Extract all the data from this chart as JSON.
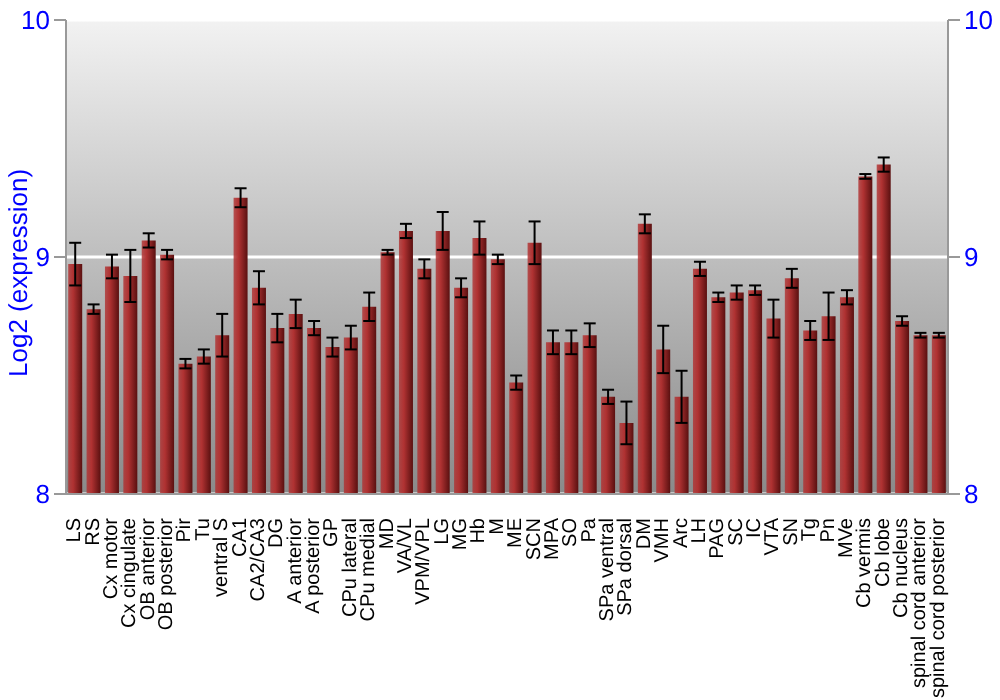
{
  "chart_data": {
    "type": "bar",
    "ylabel": "Log2 (expression)",
    "categories": [
      "LS",
      "RS",
      "Cx motor",
      "Cx cingulate",
      "OB anterior",
      "OB posterior",
      "Pir",
      "Tu",
      "ventral S",
      "CA1",
      "CA2/CA3",
      "DG",
      "A anterior",
      "A posterior",
      "GP",
      "CPu lateral",
      "CPu medial",
      "MD",
      "VA/VL",
      "VPM/VPL",
      "LG",
      "MG",
      "Hb",
      "M",
      "ME",
      "SCN",
      "MPA",
      "SO",
      "Pa",
      "SPa ventral",
      "SPa dorsal",
      "DM",
      "VMH",
      "Arc",
      "LH",
      "PAG",
      "SC",
      "IC",
      "VTA",
      "SN",
      "Tg",
      "Pn",
      "MVe",
      "Cb vermis",
      "Cb lobe",
      "Cb nucleus",
      "spinal cord anterior",
      "spinal cord posterior"
    ],
    "values": [
      8.97,
      8.78,
      8.96,
      8.92,
      9.07,
      9.01,
      8.55,
      8.58,
      8.67,
      9.25,
      8.87,
      8.7,
      8.76,
      8.7,
      8.62,
      8.66,
      8.79,
      9.02,
      9.11,
      8.95,
      9.11,
      8.87,
      9.08,
      8.99,
      8.47,
      9.06,
      8.64,
      8.64,
      8.67,
      8.41,
      8.3,
      9.14,
      8.61,
      8.41,
      8.95,
      8.83,
      8.85,
      8.86,
      8.74,
      8.91,
      8.69,
      8.75,
      8.83,
      9.34,
      9.39,
      8.73,
      8.67,
      8.67
    ],
    "errors": [
      0.09,
      0.02,
      0.05,
      0.11,
      0.03,
      0.02,
      0.02,
      0.03,
      0.09,
      0.04,
      0.07,
      0.06,
      0.06,
      0.03,
      0.04,
      0.05,
      0.06,
      0.01,
      0.03,
      0.04,
      0.08,
      0.04,
      0.07,
      0.02,
      0.03,
      0.09,
      0.05,
      0.05,
      0.05,
      0.03,
      0.09,
      0.04,
      0.1,
      0.11,
      0.03,
      0.02,
      0.03,
      0.02,
      0.08,
      0.04,
      0.04,
      0.1,
      0.03,
      0.01,
      0.03,
      0.02,
      0.01,
      0.01
    ],
    "color": "#b03232",
    "ylim": [
      8,
      10
    ],
    "yticks": [
      8,
      9,
      10
    ],
    "y2lim": [
      8,
      10
    ],
    "y2ticks": [
      8,
      9,
      10
    ],
    "grid": "y"
  }
}
